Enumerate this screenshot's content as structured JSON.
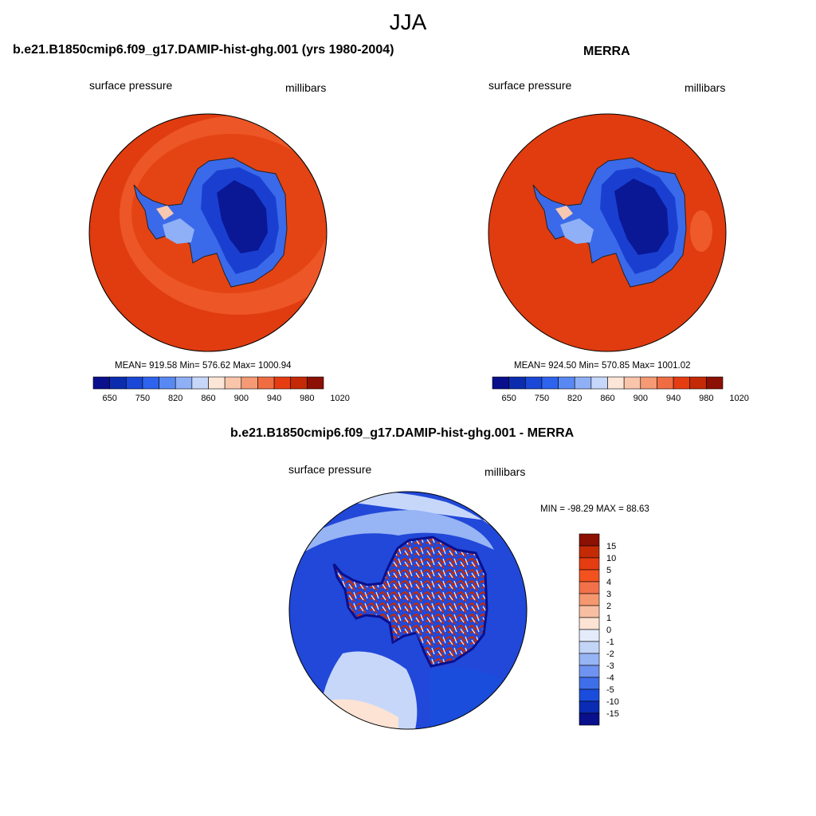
{
  "title": "JJA",
  "panels": [
    {
      "title": "b.e21.B1850cmip6.f09_g17.DAMIP-hist-ghg.001 (yrs 1980-2004)",
      "left_label": "surface pressure",
      "right_label": "millibars",
      "stats": "MEAN= 919.58  Min= 576.62  Max= 1000.94"
    },
    {
      "title": "MERRA",
      "left_label": "surface pressure",
      "right_label": "millibars",
      "stats": "MEAN= 924.50  Min= 570.85  Max= 1001.02"
    },
    {
      "title": "b.e21.B1850cmip6.f09_g17.DAMIP-hist-ghg.001 - MERRA",
      "left_label": "surface pressure",
      "right_label": "millibars",
      "stats": "MIN = -98.29 MAX =  88.63"
    }
  ],
  "abs_colorbar": {
    "tick_labels": [
      "650",
      "750",
      "820",
      "860",
      "900",
      "940",
      "980",
      "1020"
    ],
    "colors": [
      "#0a0f8c",
      "#0c2cae",
      "#1a47d6",
      "#2e63ee",
      "#5888f2",
      "#8fb0f6",
      "#c6d7fa",
      "#fbe6d8",
      "#f9c5ab",
      "#f59a75",
      "#f06d43",
      "#e63c12",
      "#c42a06",
      "#8c1004"
    ]
  },
  "diff_colorbar": {
    "tick_labels": [
      "15",
      "10",
      "5",
      "4",
      "3",
      "2",
      "1",
      "0",
      "-1",
      "-2",
      "-3",
      "-4",
      "-5",
      "-10",
      "-15"
    ],
    "colors": [
      "#8c1004",
      "#c42a06",
      "#e63c12",
      "#f3521f",
      "#f2714b",
      "#f5976f",
      "#f8bea1",
      "#fce3d4",
      "#e4ecfb",
      "#c3d5f7",
      "#97b4f4",
      "#6f93f0",
      "#3f6ee9",
      "#1a4ddc",
      "#0a2cb4",
      "#0a0f8c"
    ]
  }
}
